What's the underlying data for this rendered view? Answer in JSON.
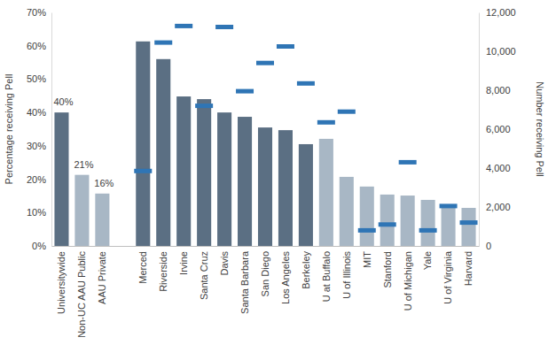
{
  "chart_data": {
    "type": "bar",
    "y_label": "Percentage receiving Pell",
    "y2_label": "Number receiving Pell",
    "categories": [
      "Universitywide",
      "Non-UC AAU Public",
      "AAU Private",
      null,
      "Merced",
      "Riverside",
      "Irvine",
      "Santa Cruz",
      "Davis",
      "Santa Barbara",
      "San Diego",
      "Los Angeles",
      "Berkeley",
      "U at Buffalo",
      "U of Illinois",
      "MIT",
      "Stanford",
      "U of Michigan",
      "Yale",
      "U of Virginia",
      "Harvard"
    ],
    "series": [
      {
        "type": "bar",
        "values": [
          40,
          21.3,
          15.7,
          null,
          61.3,
          56.0,
          44.8,
          44.0,
          40.0,
          38.7,
          35.5,
          34.7,
          30.5,
          32.1,
          20.7,
          17.8,
          15.4,
          15.1,
          13.8,
          11.9,
          11.4
        ],
        "colors": [
          "#5b6f83",
          "#a8b7c5",
          "#a8b7c5",
          null,
          "#5b6f83",
          "#5b6f83",
          "#5b6f83",
          "#5b6f83",
          "#5b6f83",
          "#5b6f83",
          "#5b6f83",
          "#5b6f83",
          "#5b6f83",
          "#a8b7c5",
          "#a8b7c5",
          "#a8b7c5",
          "#a8b7c5",
          "#a8b7c5",
          "#a8b7c5",
          "#a8b7c5",
          "#a8b7c5"
        ],
        "data_labels": true,
        "value_labels": [
          "40%",
          "21%",
          "16%",
          null,
          null,
          null,
          null,
          null,
          null,
          null,
          null,
          null,
          null,
          null,
          null,
          null,
          null,
          null,
          null,
          null,
          null
        ]
      },
      {
        "type": "scatter",
        "marker": "dash",
        "axis": "y2",
        "color": "#2f75b5",
        "values": [
          null,
          null,
          null,
          null,
          3850,
          10450,
          11300,
          7200,
          11250,
          7950,
          9400,
          10250,
          8350,
          6350,
          6900,
          800,
          1100,
          4300,
          800,
          2050,
          1200
        ]
      }
    ],
    "ylim": [
      0,
      70
    ],
    "yticks": [
      {
        "value": 0,
        "label": "0%"
      },
      {
        "value": 10,
        "label": "10%"
      },
      {
        "value": 20,
        "label": "20%"
      },
      {
        "value": 30,
        "label": "30%"
      },
      {
        "value": 40,
        "label": "40%"
      },
      {
        "value": 50,
        "label": "50%"
      },
      {
        "value": 60,
        "label": "60%"
      },
      {
        "value": 70,
        "label": "70%"
      }
    ],
    "y2lim": [
      0,
      12000
    ],
    "y2ticks": [
      0,
      {
        "value": 2000,
        "label": "2,000"
      },
      {
        "value": 4000,
        "label": "4,000"
      },
      {
        "value": 6000,
        "label": "6,000"
      },
      {
        "value": 8000,
        "label": "8,000"
      },
      {
        "value": 10000,
        "label": "10,000"
      },
      {
        "value": 12000,
        "label": "12,000"
      }
    ],
    "grid": false
  }
}
